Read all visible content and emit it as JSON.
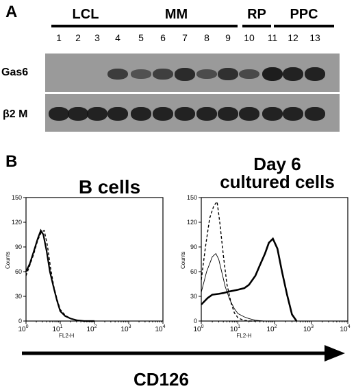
{
  "panel_a": {
    "label": "A",
    "groups": [
      {
        "label": "LCL",
        "lanes": [
          1,
          2,
          3
        ]
      },
      {
        "label": "MM",
        "lanes": [
          4,
          5,
          6,
          7,
          8,
          9
        ]
      },
      {
        "label": "RP",
        "lanes": [
          10
        ]
      },
      {
        "label": "PPC",
        "lanes": [
          11,
          12,
          13
        ]
      }
    ],
    "lane_numbers": [
      "1",
      "2",
      "3",
      "4",
      "5",
      "6",
      "7",
      "8",
      "9",
      "10",
      "11",
      "12",
      "13"
    ],
    "rows": [
      {
        "label": "Gas6",
        "intensity": [
          0,
          0,
          0,
          0.55,
          0.3,
          0.5,
          0.75,
          0.35,
          0.7,
          0.4,
          0.9,
          0.85,
          0.85
        ]
      },
      {
        "label": "β2 M",
        "intensity": [
          0.85,
          0.85,
          0.85,
          0.85,
          0.85,
          0.85,
          0.85,
          0.85,
          0.85,
          0.85,
          0.85,
          0.85,
          0.85
        ]
      }
    ]
  },
  "panel_b": {
    "label": "B",
    "x_axis_label": "CD126",
    "charts": [
      {
        "title": "B cells",
        "ylabel": "Counts",
        "xlabel": "FL2-H"
      },
      {
        "title": "Day 6\ncultured cells",
        "ylabel": "Counts",
        "xlabel": "FL2-H"
      }
    ]
  },
  "chart_data": [
    {
      "type": "line",
      "title": "B cells",
      "xlabel": "FL2-H",
      "ylabel": "Counts",
      "x_scale": "log",
      "xlim": [
        1,
        10000
      ],
      "ylim": [
        0,
        150
      ],
      "yticks": [
        0,
        30,
        60,
        90,
        120,
        150
      ],
      "xticks": [
        "10^0",
        "10^1",
        "10^2",
        "10^3",
        "10^4"
      ],
      "series": [
        {
          "style": "solid",
          "x": [
            1,
            1.3,
            1.7,
            2.2,
            2.7,
            3.2,
            4,
            5,
            6.5,
            8,
            10,
            14,
            20,
            30,
            50,
            100
          ],
          "y": [
            60,
            70,
            85,
            100,
            110,
            105,
            85,
            60,
            40,
            25,
            12,
            6,
            3,
            1,
            0,
            0
          ]
        },
        {
          "style": "dashed",
          "x": [
            1,
            1.3,
            1.7,
            2.2,
            2.8,
            3.4,
            4.2,
            5.2,
            6.5,
            8,
            10,
            14,
            20,
            30,
            50,
            100
          ],
          "y": [
            55,
            68,
            82,
            98,
            108,
            110,
            92,
            65,
            42,
            27,
            14,
            7,
            3,
            1,
            0,
            0
          ]
        }
      ]
    },
    {
      "type": "line",
      "title": "Day 6 cultured cells",
      "xlabel": "FL2-H",
      "ylabel": "Counts",
      "x_scale": "log",
      "xlim": [
        1,
        10000
      ],
      "ylim": [
        0,
        150
      ],
      "yticks": [
        0,
        30,
        60,
        90,
        120,
        150
      ],
      "xticks": [
        "10^0",
        "10^1",
        "10^2",
        "10^3",
        "10^4"
      ],
      "series": [
        {
          "style": "dashed",
          "x": [
            1,
            1.3,
            1.7,
            2.2,
            2.7,
            3.2,
            4,
            5,
            6.5,
            8,
            10,
            14,
            20,
            30
          ],
          "y": [
            50,
            90,
            125,
            140,
            145,
            120,
            80,
            45,
            22,
            10,
            4,
            1,
            0,
            0
          ]
        },
        {
          "style": "thin",
          "x": [
            1,
            1.4,
            2,
            2.5,
            3,
            3.6,
            4.5,
            6,
            8,
            10,
            15,
            20,
            30,
            50,
            100
          ],
          "y": [
            35,
            60,
            78,
            82,
            75,
            60,
            42,
            26,
            15,
            9,
            5,
            3,
            1,
            0,
            0
          ]
        },
        {
          "style": "bold",
          "x": [
            1,
            1.5,
            2,
            3,
            4,
            6,
            10,
            15,
            20,
            30,
            40,
            55,
            70,
            90,
            120,
            160,
            220,
            300,
            400
          ],
          "y": [
            20,
            28,
            32,
            33,
            34,
            36,
            38,
            40,
            44,
            55,
            68,
            82,
            95,
            100,
            88,
            60,
            32,
            8,
            0
          ]
        }
      ]
    }
  ]
}
